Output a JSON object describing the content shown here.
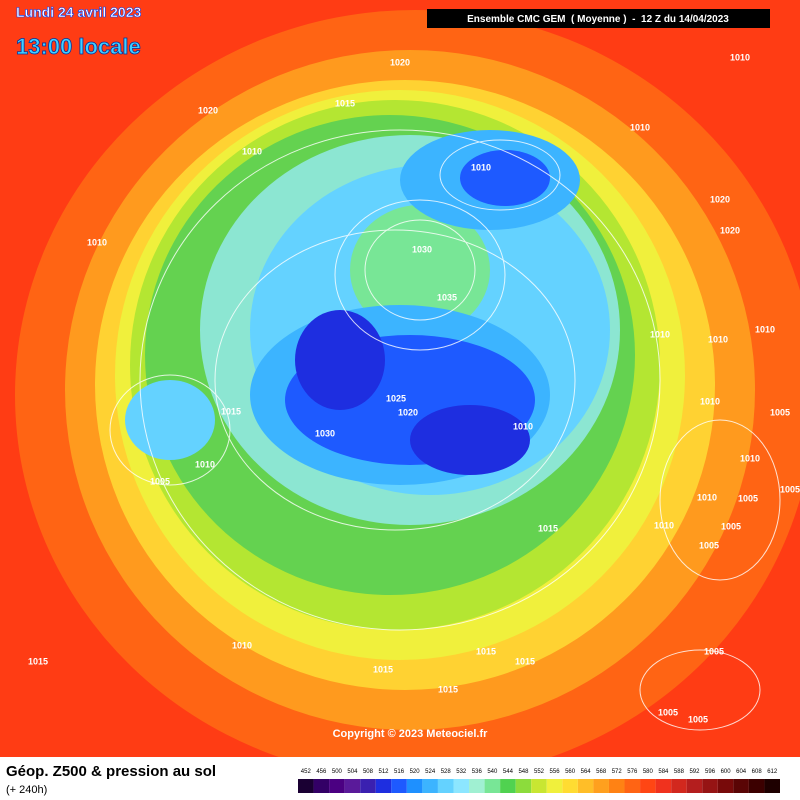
{
  "header": {
    "date": "Lundi 24 avril 2023",
    "time": "13:00 locale",
    "run": "Ensemble CMC GEM  ( Moyenne )  -  12 Z du 14/04/2023"
  },
  "copyright": "Copyright © 2023 Meteociel.fr",
  "footer": {
    "title": "Géop. Z500 & pression au sol",
    "lead": "(+ 240h)"
  },
  "isobar_labels": [
    "1020",
    "1010",
    "1015",
    "1020",
    "1010",
    "1010",
    "1010",
    "1020",
    "1010",
    "1020",
    "1030",
    "1035",
    "1010",
    "1010",
    "1010",
    "1025",
    "1020",
    "1010",
    "1005",
    "1015",
    "1010",
    "1030",
    "1010",
    "1005",
    "1010",
    "1005",
    "1010",
    "1005",
    "1010",
    "1015",
    "1005",
    "1005",
    "1010",
    "1015",
    "1005",
    "1015",
    "1015",
    "1015",
    "1015",
    "1005",
    "1005"
  ],
  "legend": {
    "labels": [
      "452",
      "456",
      "500",
      "504",
      "508",
      "512",
      "516",
      "520",
      "524",
      "528",
      "532",
      "536",
      "540",
      "544",
      "548",
      "552",
      "556",
      "560",
      "564",
      "568",
      "572",
      "576",
      "580",
      "584",
      "588",
      "592",
      "596",
      "600",
      "604",
      "608",
      "612"
    ],
    "colors": [
      "#1a0033",
      "#330066",
      "#4b0082",
      "#5a1a9a",
      "#3a20b0",
      "#1e2ee0",
      "#1e5aff",
      "#1e90ff",
      "#3cb4ff",
      "#64d2ff",
      "#8ce6ff",
      "#a0f0d2",
      "#78e696",
      "#50d250",
      "#8cdc3c",
      "#c8e632",
      "#f0f03c",
      "#ffdc32",
      "#ffbe28",
      "#ffa01e",
      "#ff8214",
      "#ff6414",
      "#ff4614",
      "#f0321e",
      "#d2281e",
      "#b41e1e",
      "#961414",
      "#780a0a",
      "#5a0505",
      "#3c0000",
      "#1e0000"
    ]
  }
}
